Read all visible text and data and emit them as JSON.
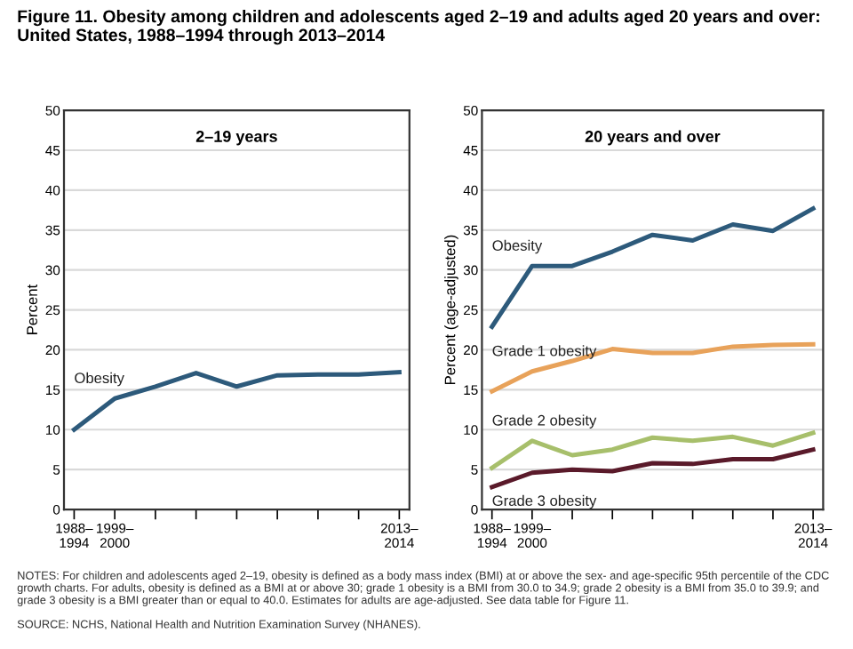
{
  "chart_data": [
    {
      "type": "line",
      "title": "2–19 years",
      "ylabel": "Percent",
      "annotations": [
        "Figure 11. Obesity among children and adolescents aged 2–19 and adults aged 20 years and over: United States, 1988–1994 through 2013–2014"
      ],
      "categories": [
        "1988–\n1994",
        "1999–\n2000",
        null,
        null,
        null,
        null,
        null,
        null,
        "2013–\n2014"
      ],
      "series": [
        {
          "name": "Obesity",
          "color": "#2d5a7b",
          "values": [
            10.0,
            13.9,
            15.4,
            17.1,
            15.4,
            16.8,
            16.9,
            16.9,
            17.2
          ]
        }
      ],
      "ylim": [
        0,
        50
      ],
      "yticks": [
        0,
        5,
        10,
        15,
        20,
        25,
        30,
        35,
        40,
        45,
        50
      ],
      "grid": "y",
      "legend": false,
      "marker": "none",
      "line_style": "solid"
    },
    {
      "type": "line",
      "title": "20 years and over",
      "ylabel": "Percent (age-adjusted)",
      "annotations": [
        "NOTES: For children and adolescents aged 2–19, obesity is defined as a body mass index (BMI) at or above the sex- and age-specific 95th percentile of the CDC growth charts. For adults, obesity is defined as a BMI at or above 30; grade 1 obesity is a BMI from 30.0 to 34.9; grade 2 obesity is a BMI from 35.0 to 39.9; and grade 3 obesity is a BMI greater than or equal to 40.0. Estimates for adults are age-adjusted. See data table for Figure 11.",
        "SOURCE: NCHS, National Health and Nutrition Examination Survey (NHANES)."
      ],
      "categories": [
        "1988–\n1994",
        "1999–\n2000",
        null,
        null,
        null,
        null,
        null,
        null,
        "2013–\n2014"
      ],
      "series": [
        {
          "name": "Obesity",
          "color": "#2d5a7b",
          "values": [
            22.9,
            30.5,
            30.5,
            32.3,
            34.4,
            33.7,
            35.7,
            34.9,
            37.7
          ]
        },
        {
          "name": "Grade 1 obesity",
          "color": "#e8a25a",
          "values": [
            14.8,
            17.3,
            18.6,
            20.1,
            19.6,
            19.6,
            20.4,
            20.6,
            20.7
          ]
        },
        {
          "name": "Grade 2 obesity",
          "color": "#a7bf6b",
          "values": [
            5.2,
            8.6,
            6.8,
            7.5,
            9.0,
            8.6,
            9.1,
            8.0,
            9.6
          ]
        },
        {
          "name": "Grade 3 obesity",
          "color": "#5a1a2a",
          "values": [
            2.8,
            4.6,
            5.0,
            4.8,
            5.8,
            5.7,
            6.3,
            6.3,
            7.5
          ]
        }
      ],
      "ylim": [
        0,
        50
      ],
      "yticks": [
        0,
        5,
        10,
        15,
        20,
        25,
        30,
        35,
        40,
        45,
        50
      ],
      "grid": "y",
      "legend": false,
      "marker": "none",
      "line_style": "solid"
    }
  ]
}
